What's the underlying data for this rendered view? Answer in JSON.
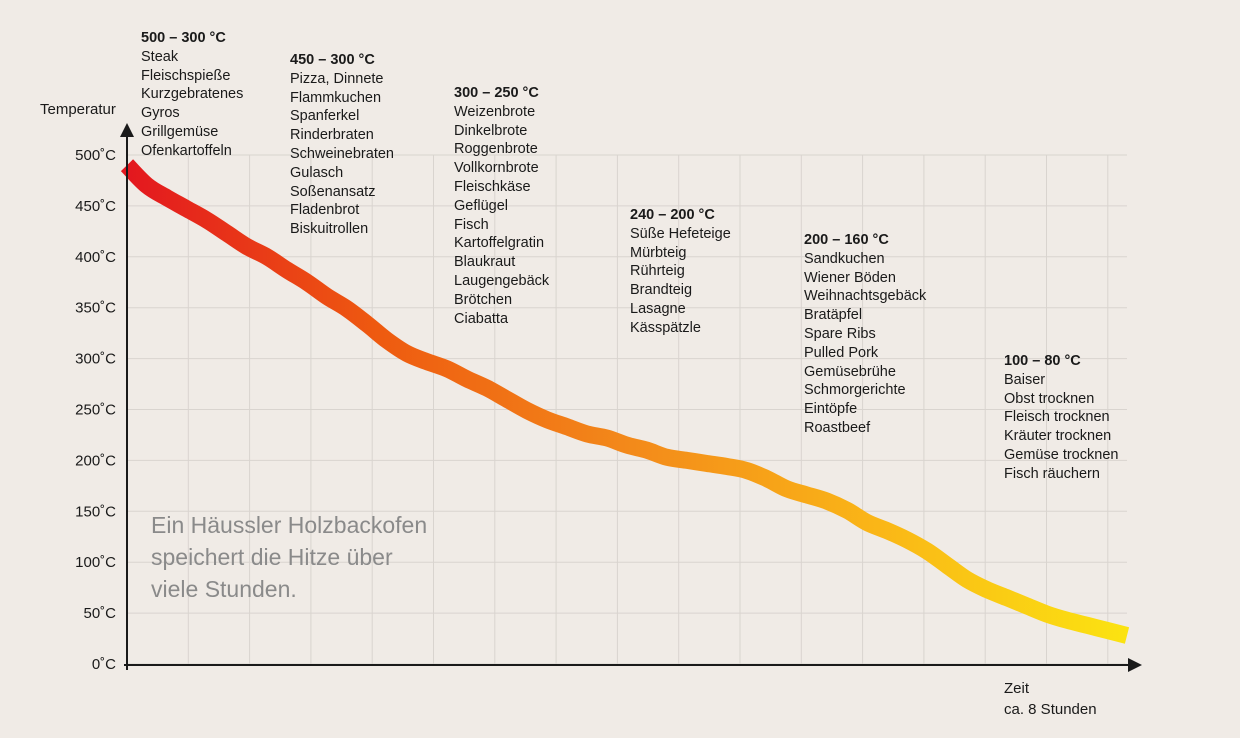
{
  "chart_data": {
    "type": "line",
    "ylabel": "Temperatur",
    "xlabel": "Zeit",
    "xlabel_sub": "ca. 8 Stunden",
    "ylim": [
      0,
      500
    ],
    "yticks": [
      "0˚C",
      "50˚C",
      "100˚C",
      "150˚C",
      "200˚C",
      "250˚C",
      "300˚C",
      "350˚C",
      "400˚C",
      "450˚C",
      "500˚C"
    ],
    "grid": true,
    "series": [
      {
        "x": [
          0,
          0.16,
          0.32,
          0.48,
          0.64,
          0.8,
          0.96,
          1.12,
          1.28,
          1.44,
          1.6,
          1.76,
          1.92,
          2.08,
          2.24,
          2.4,
          2.56,
          2.72,
          2.88,
          3.04,
          3.2,
          3.36,
          3.52,
          3.68,
          3.84,
          4.0,
          4.16,
          4.32,
          4.48,
          4.64,
          4.8,
          4.96,
          5.12,
          5.28,
          5.44,
          5.6,
          5.76,
          5.92,
          6.08,
          6.24,
          6.4,
          6.56,
          6.72,
          6.88,
          7.04,
          7.2,
          7.36,
          7.52,
          7.68,
          7.84,
          8.0
        ],
        "values": [
          490,
          470,
          458,
          447,
          436,
          423,
          410,
          400,
          387,
          375,
          361,
          349,
          334,
          318,
          305,
          297,
          290,
          280,
          271,
          260,
          249,
          240,
          233,
          226,
          222,
          215,
          210,
          203,
          200,
          197,
          194,
          190,
          182,
          172,
          166,
          160,
          151,
          139,
          131,
          122,
          111,
          97,
          83,
          73,
          65,
          57,
          49,
          43,
          38,
          33,
          28
        ],
        "colors": [
          "#e3171f",
          "#ee5a10",
          "#f3891a",
          "#fab617",
          "#fbe311"
        ]
      }
    ],
    "groups": [
      {
        "range": "500 – 300 °C",
        "items": [
          "Steak",
          "Fleischspieße",
          "Kurzgebratenes",
          "Gyros",
          "Grillgemüse",
          "Ofenkartoffeln"
        ]
      },
      {
        "range": "450 – 300 °C",
        "items": [
          "Pizza, Dinnete",
          "Flammkuchen",
          "Spanferkel",
          "Rinderbraten",
          "Schweinebraten",
          "Gulasch",
          "Soßenansatz",
          "Fladenbrot",
          "Biskuitrollen"
        ]
      },
      {
        "range": "300 – 250 °C",
        "items": [
          "Weizenbrote",
          "Dinkelbrote",
          "Roggenbrote",
          "Vollkornbrote",
          "Fleischkäse",
          "Geflügel",
          "Fisch",
          "Kartoffelgratin",
          "Blaukraut",
          "Laugengebäck",
          "Brötchen",
          "Ciabatta"
        ]
      },
      {
        "range": "240 – 200 °C",
        "items": [
          "Süße Hefeteige",
          "Mürbteig",
          "Rührteig",
          "Brandteig",
          "Lasagne",
          "Kässpätzle"
        ]
      },
      {
        "range": "200 – 160 °C",
        "items": [
          "Sandkuchen",
          "Wiener Böden",
          "Weihnachtsgebäck",
          "Bratäpfel",
          "Spare Ribs",
          "Pulled Pork",
          "Gemüsebrühe",
          "Schmorgerichte",
          "Eintöpfe",
          "Roastbeef"
        ]
      },
      {
        "range": "100 – 80 °C",
        "items": [
          "Baiser",
          "Obst trocknen",
          "Fleisch trocknen",
          "Kräuter trocknen",
          "Gemüse trocknen",
          "Fisch räuchern"
        ]
      }
    ],
    "annotation": [
      "Ein Häussler Holzbackofen",
      "speichert die Hitze über",
      "viele Stunden."
    ]
  }
}
